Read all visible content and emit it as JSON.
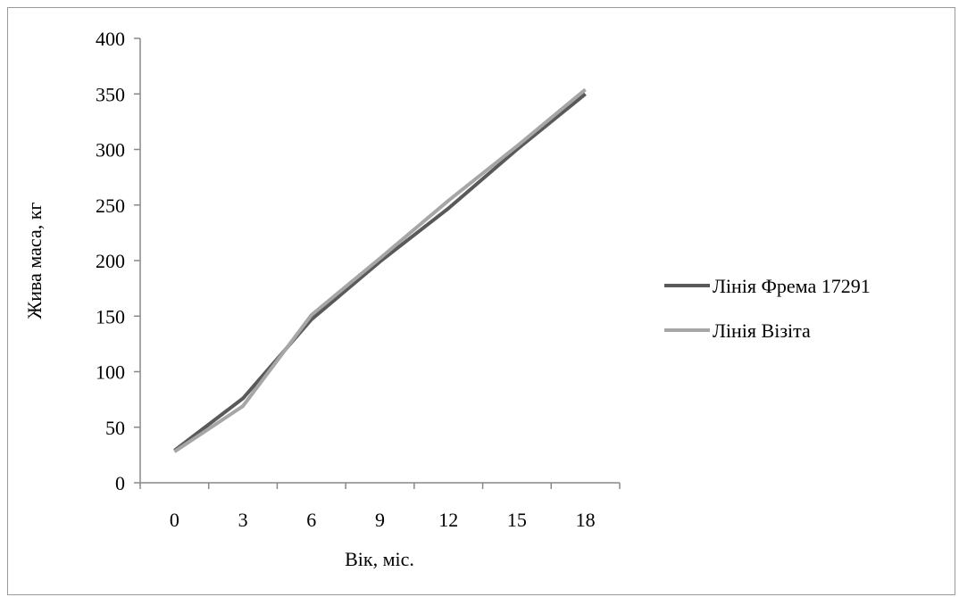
{
  "chart_data": {
    "type": "line",
    "xlabel": "Вік, міс.",
    "ylabel": "Жива маса, кг",
    "categories": [
      "0",
      "3",
      "6",
      "9",
      "12",
      "15",
      "18"
    ],
    "ylim": [
      0,
      400
    ],
    "yticks": [
      "0",
      "50",
      "100",
      "150",
      "200",
      "250",
      "300",
      "350",
      "400"
    ],
    "grid": false,
    "legend_position": "right",
    "series": [
      {
        "name": "Лінія Фрема 17291",
        "color": "#595959",
        "values": [
          29,
          76,
          147,
          199,
          247,
          300,
          350
        ]
      },
      {
        "name": "Лінія Візіта",
        "color": "#a6a6a6",
        "values": [
          28,
          69,
          151,
          202,
          254,
          303,
          354
        ]
      }
    ]
  }
}
